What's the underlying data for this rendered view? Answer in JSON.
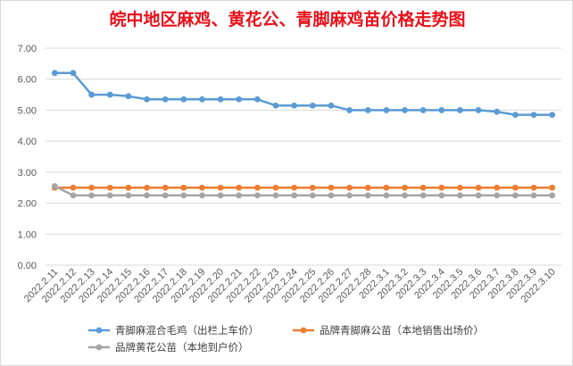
{
  "chart_data": {
    "type": "line",
    "title": "皖中地区麻鸡、黄花公、青脚麻鸡苗价格走势图",
    "xlabel": "",
    "ylabel": "",
    "ylim": [
      0,
      7
    ],
    "yticks": [
      "0.00",
      "1.00",
      "2.00",
      "3.00",
      "4.00",
      "5.00",
      "6.00",
      "7.00"
    ],
    "grid": true,
    "legend_position": "bottom",
    "x": [
      "2022.2.11",
      "2022.2.12",
      "2022.2.13",
      "2022.2.14",
      "2022.2.15",
      "2022.2.16",
      "2022.2.17",
      "2022.2.18",
      "2022.2.19",
      "2022.2.20",
      "2022.2.21",
      "2022.2.22",
      "2022.2.23",
      "2022.2.24",
      "2022.2.25",
      "2022.2.26",
      "2022.2.27",
      "2022.2.28",
      "2022.3.1",
      "2022.3.2",
      "2022.3.3",
      "2022.3.4",
      "2022.3.5",
      "2022.3.6",
      "2022.3.7",
      "2022.3.8",
      "2022.3.9",
      "2022.3.10"
    ],
    "series": [
      {
        "name": "青脚麻混合毛鸡（出栏上车价）",
        "color": "#5b9bd5",
        "values": [
          6.2,
          6.2,
          5.5,
          5.5,
          5.45,
          5.35,
          5.35,
          5.35,
          5.35,
          5.35,
          5.35,
          5.35,
          5.15,
          5.15,
          5.15,
          5.15,
          5.0,
          5.0,
          5.0,
          5.0,
          5.0,
          5.0,
          5.0,
          5.0,
          4.95,
          4.85,
          4.85,
          4.85
        ]
      },
      {
        "name": "品牌青脚麻公苗（本地销售出场价）",
        "color": "#ed7d31",
        "values": [
          2.5,
          2.5,
          2.5,
          2.5,
          2.5,
          2.5,
          2.5,
          2.5,
          2.5,
          2.5,
          2.5,
          2.5,
          2.5,
          2.5,
          2.5,
          2.5,
          2.5,
          2.5,
          2.5,
          2.5,
          2.5,
          2.5,
          2.5,
          2.5,
          2.5,
          2.5,
          2.5,
          2.5
        ]
      },
      {
        "name": "品牌黄花公苗（本地到户价）",
        "color": "#a5a5a5",
        "values": [
          2.55,
          2.25,
          2.25,
          2.25,
          2.25,
          2.25,
          2.25,
          2.25,
          2.25,
          2.25,
          2.25,
          2.25,
          2.25,
          2.25,
          2.25,
          2.25,
          2.25,
          2.25,
          2.25,
          2.25,
          2.25,
          2.25,
          2.25,
          2.25,
          2.25,
          2.25,
          2.25,
          2.25
        ]
      }
    ]
  }
}
